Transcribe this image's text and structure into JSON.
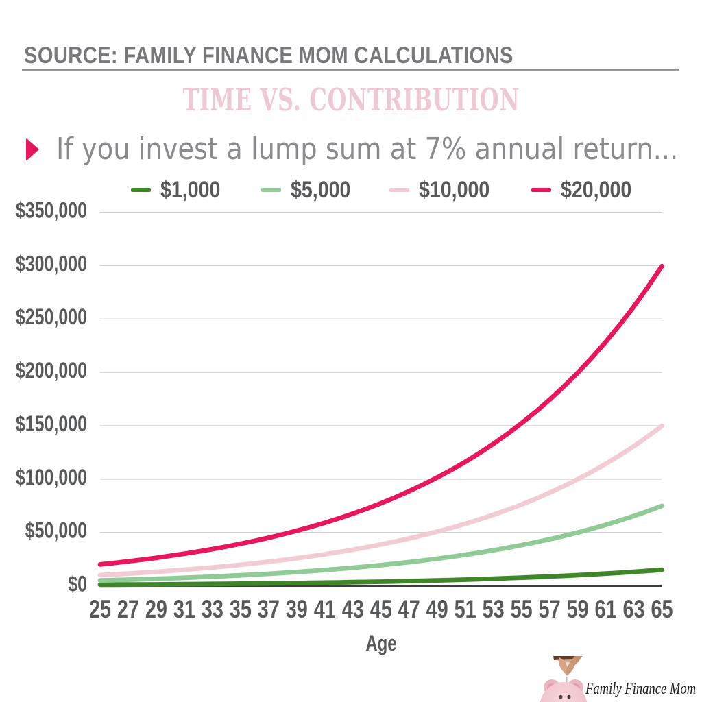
{
  "source_line": {
    "text": "SOURCE: FAMILY FINANCE MOM CALCULATIONS"
  },
  "title": {
    "text": "TIME VS. CONTRIBUTION",
    "color": "#eec8d3"
  },
  "subtitle": {
    "text": "If you invest a lump sum at 7% annual return...",
    "bullet_color": "#e8175d"
  },
  "logo": {
    "text": "Family Finance Mom"
  },
  "chart_data": {
    "type": "line",
    "title": "TIME VS. CONTRIBUTION",
    "xlabel": "Age",
    "ylabel": "",
    "x": [
      25,
      26,
      27,
      28,
      29,
      30,
      31,
      32,
      33,
      34,
      35,
      36,
      37,
      38,
      39,
      40,
      41,
      42,
      43,
      44,
      45,
      46,
      47,
      48,
      49,
      50,
      51,
      52,
      53,
      54,
      55,
      56,
      57,
      58,
      59,
      60,
      61,
      62,
      63,
      64,
      65
    ],
    "x_tick_labels": [
      "25",
      "27",
      "29",
      "31",
      "33",
      "35",
      "37",
      "39",
      "41",
      "43",
      "45",
      "47",
      "49",
      "51",
      "53",
      "55",
      "57",
      "59",
      "61",
      "63",
      "65"
    ],
    "ylim": [
      0,
      350000
    ],
    "y_ticks": [
      0,
      50000,
      100000,
      150000,
      200000,
      250000,
      300000,
      350000
    ],
    "y_tick_labels": [
      "$0",
      "$50,000",
      "$100,000",
      "$150,000",
      "$200,000",
      "$250,000",
      "$300,000",
      "$350,000"
    ],
    "grid": "horizontal",
    "legend_position": "top",
    "annual_return": "7%",
    "series": [
      {
        "name": "$1,000",
        "color": "#3e8628",
        "values": [
          1000,
          1070,
          1145,
          1225,
          1311,
          1403,
          1501,
          1606,
          1718,
          1838,
          1967,
          2105,
          2252,
          2410,
          2579,
          2759,
          2952,
          3159,
          3380,
          3617,
          3870,
          4141,
          4430,
          4741,
          5072,
          5427,
          5807,
          6214,
          6649,
          7114,
          7612,
          8145,
          8715,
          9325,
          9978,
          10677,
          11424,
          12224,
          13079,
          13995,
          14974
        ]
      },
      {
        "name": "$5,000",
        "color": "#90ca97",
        "values": [
          5000,
          5350,
          5725,
          6125,
          6554,
          7013,
          7504,
          8029,
          8591,
          9192,
          9836,
          10524,
          11261,
          12049,
          12893,
          13795,
          14761,
          15794,
          16900,
          18083,
          19348,
          20703,
          22152,
          23703,
          25362,
          27137,
          29037,
          31069,
          33244,
          35571,
          38061,
          40726,
          43576,
          46627,
          49891,
          53383,
          57120,
          61118,
          65396,
          69974,
          74872
        ]
      },
      {
        "name": "$10,000",
        "color": "#f1ccd5",
        "values": [
          10000,
          10700,
          11449,
          12250,
          13108,
          14026,
          15007,
          16058,
          17182,
          18385,
          19672,
          21049,
          22522,
          24098,
          25785,
          27590,
          29522,
          31588,
          33799,
          36165,
          38697,
          41406,
          44304,
          47405,
          50724,
          54274,
          58074,
          62139,
          66488,
          71143,
          76123,
          81451,
          87153,
          93253,
          99781,
          106766,
          114239,
          122236,
          130793,
          139948,
          149745
        ]
      },
      {
        "name": "$20,000",
        "color": "#e8175d",
        "values": [
          20000,
          21400,
          22898,
          24501,
          26216,
          28051,
          30015,
          32116,
          34364,
          36769,
          39343,
          42097,
          45044,
          48197,
          51571,
          55181,
          59043,
          63176,
          67599,
          72331,
          77394,
          82811,
          88608,
          94811,
          101447,
          108549,
          116147,
          124277,
          132977,
          142285,
          152245,
          162902,
          174305,
          186507,
          199562,
          213532,
          228479,
          244472,
          261585,
          279896,
          299489
        ]
      }
    ]
  }
}
